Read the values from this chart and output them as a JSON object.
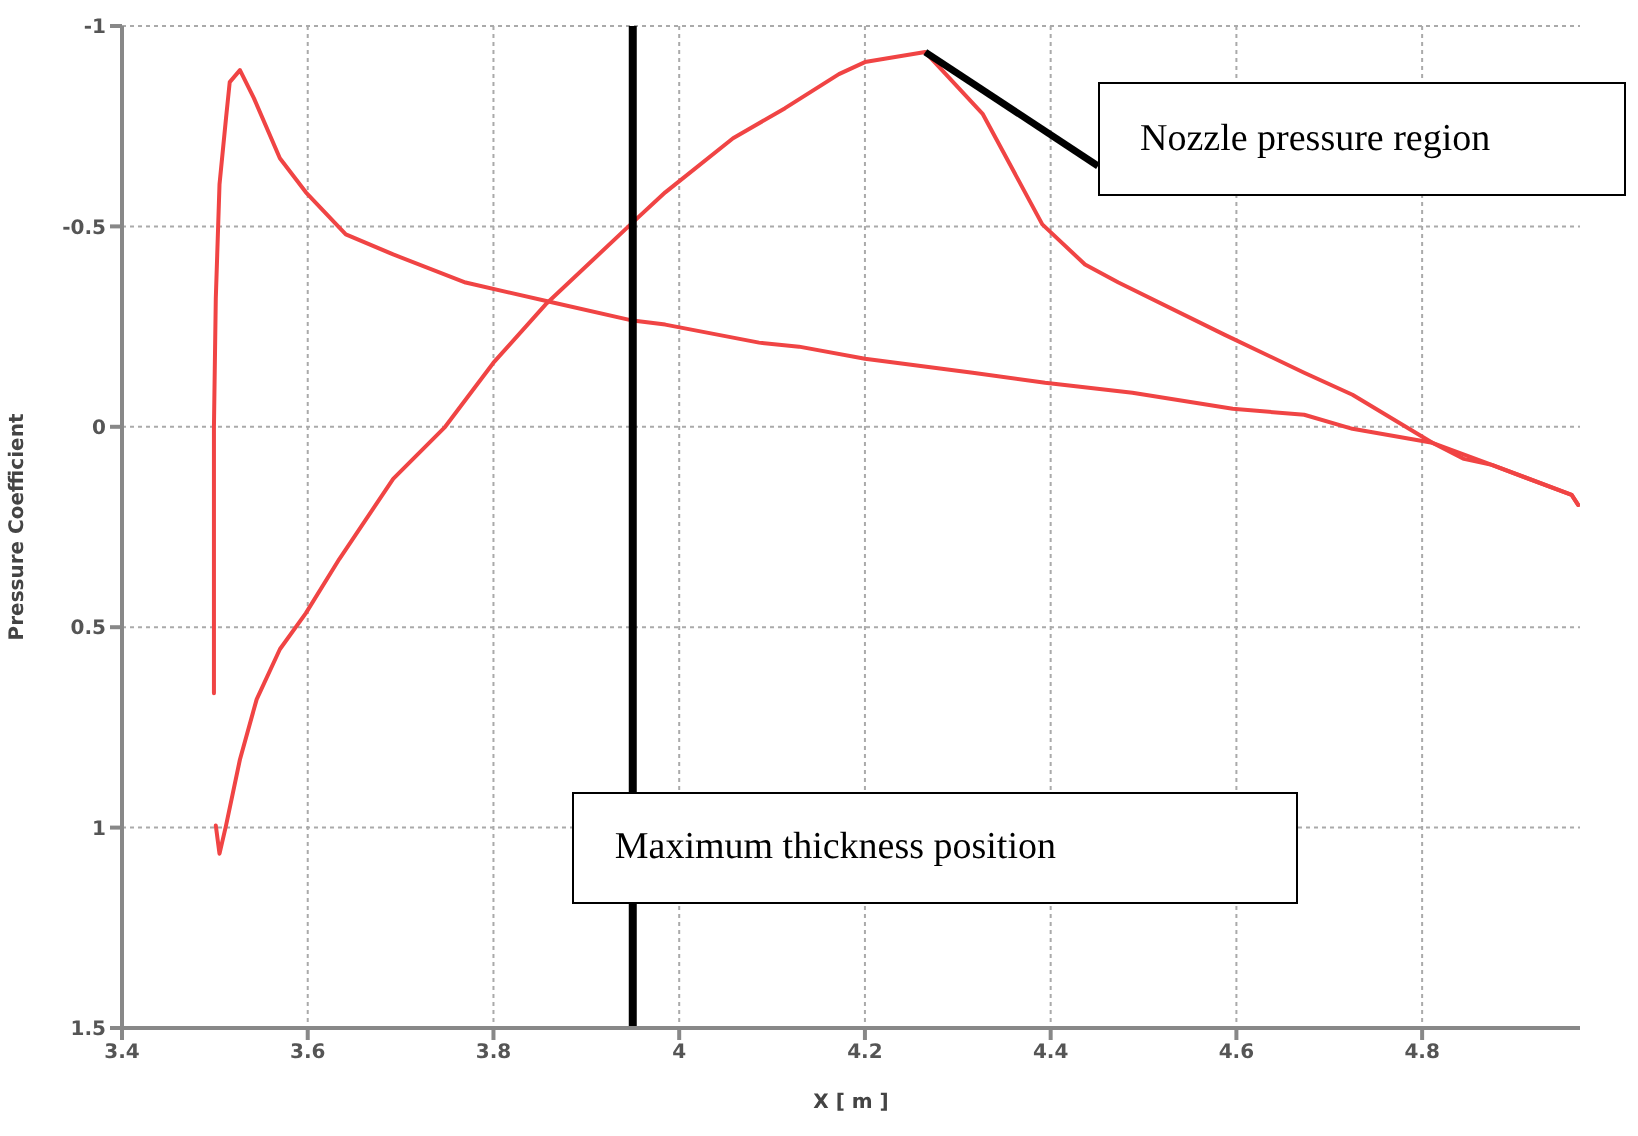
{
  "chart_data": {
    "type": "line",
    "xlabel": "X [ m ]",
    "ylabel": "Pressure Coefficient",
    "xlim": [
      3.4,
      4.97
    ],
    "xticks": [
      3.4,
      3.6,
      3.8,
      4,
      4.2,
      4.4,
      4.6,
      4.8
    ],
    "ylim": [
      1.5,
      -1
    ],
    "yticks": [
      -1,
      -0.5,
      0,
      0.5,
      1,
      1.5
    ],
    "grid": true,
    "marker": "none",
    "line_style": "solid",
    "series": [
      {
        "color": "#f04444",
        "x": [
          3.499,
          3.499,
          3.501,
          3.505,
          3.512,
          3.516,
          3.527,
          3.542,
          3.57,
          3.598,
          3.641,
          3.692,
          3.77,
          3.864,
          3.95,
          3.985,
          4.086,
          4.129,
          4.2,
          4.316,
          4.394,
          4.488,
          4.596,
          4.673,
          4.725,
          4.811,
          4.845,
          4.875,
          4.961,
          4.968
        ],
        "values": [
          0.665,
          0,
          -0.32,
          -0.605,
          -0.77,
          -0.86,
          -0.89,
          -0.82,
          -0.67,
          -0.585,
          -0.48,
          -0.43,
          -0.36,
          -0.31,
          -0.265,
          -0.255,
          -0.21,
          -0.2,
          -0.17,
          -0.135,
          -0.11,
          -0.085,
          -0.045,
          -0.03,
          0.005,
          0.04,
          0.08,
          0.095,
          0.17,
          0.195
        ]
      },
      {
        "color": "#f04444",
        "x": [
          3.501,
          3.505,
          3.512,
          3.527,
          3.545,
          3.57,
          3.598,
          3.634,
          3.692,
          3.748,
          3.8,
          3.856,
          3.95,
          3.985,
          4.058,
          4.114,
          4.172,
          4.2,
          4.265,
          4.327,
          4.391,
          4.437,
          4.473,
          4.587,
          4.673,
          4.725,
          4.811,
          4.875,
          4.961,
          4.968
        ],
        "values": [
          0.995,
          1.065,
          0.995,
          0.83,
          0.68,
          0.555,
          0.465,
          0.33,
          0.13,
          0,
          -0.16,
          -0.305,
          -0.51,
          -0.585,
          -0.72,
          -0.795,
          -0.88,
          -0.91,
          -0.935,
          -0.78,
          -0.505,
          -0.405,
          -0.36,
          -0.23,
          -0.135,
          -0.08,
          0.04,
          0.095,
          0.17,
          0.195
        ]
      }
    ],
    "ref_lines": [
      {
        "axis": "x",
        "value": 3.95,
        "label": "Maximum thickness position",
        "color": "#000000"
      }
    ],
    "annotations": [
      {
        "text": "Nozzle pressure region",
        "x": 4.265,
        "y": -0.935
      }
    ]
  }
}
